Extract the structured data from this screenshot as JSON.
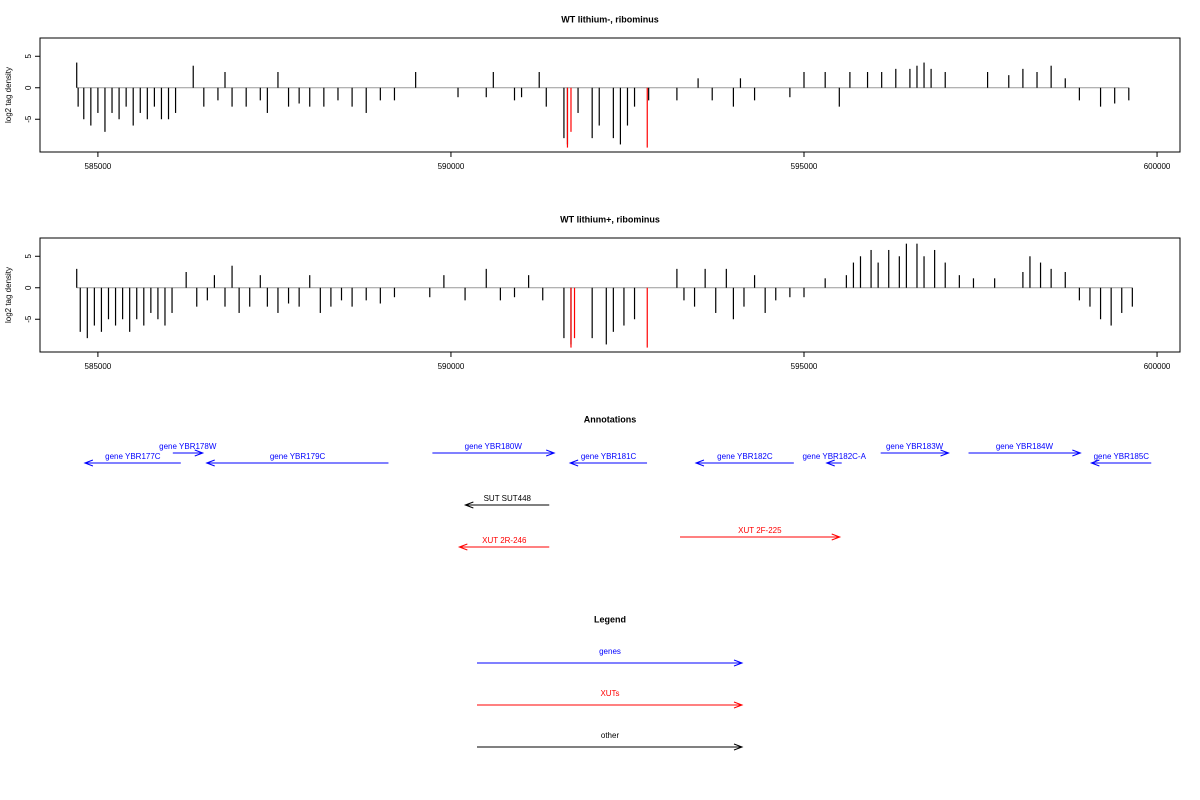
{
  "chart_data": [
    {
      "type": "bar",
      "title": "WT lithium-, ribominus",
      "ylabel": "log2 tag density",
      "xlim": [
        584180,
        600325
      ],
      "xticks": [
        585000,
        590000,
        595000,
        600000
      ],
      "ylim": [
        -10.2,
        7.9
      ],
      "yticks": [
        -5,
        0,
        5
      ],
      "color": "#000000",
      "baseline_color": "#999999",
      "x": [
        584700,
        584720,
        584800,
        584900,
        585000,
        585100,
        585200,
        585300,
        585400,
        585500,
        585600,
        585700,
        585800,
        585900,
        586000,
        586100,
        586350,
        586500,
        586700,
        586800,
        586900,
        587100,
        587300,
        587400,
        587550,
        587700,
        587850,
        588000,
        588200,
        588400,
        588600,
        588800,
        589000,
        589200,
        589500,
        590100,
        590500,
        590600,
        590900,
        591000,
        591250,
        591350,
        591600,
        591650,
        591800,
        592000,
        592100,
        592300,
        592400,
        592500,
        592600,
        592800,
        593200,
        593500,
        593700,
        594000,
        594100,
        594300,
        594800,
        595000,
        595300,
        595500,
        595650,
        595900,
        596100,
        596300,
        596500,
        596600,
        596700,
        596800,
        597000,
        597600,
        597900,
        598100,
        598300,
        598500,
        598700,
        598900,
        599200,
        599400,
        599600
      ],
      "values": [
        4,
        -3,
        -5,
        -6,
        -4,
        -7,
        -4,
        -5,
        -3,
        -6,
        -4,
        -5,
        -3,
        -5,
        -5,
        -4,
        3.5,
        -3,
        -2,
        2.5,
        -3,
        -3,
        -2,
        -4,
        2.5,
        -3,
        -2.5,
        -3,
        -3,
        -2,
        -3,
        -4,
        -2,
        -2,
        2.5,
        -1.5,
        -1.5,
        2.5,
        -2,
        -1.5,
        2.5,
        -3,
        -8,
        -9,
        -4,
        -8,
        -6,
        -8,
        -9,
        -6,
        -3,
        -2,
        -2,
        1.5,
        -2,
        -3,
        1.5,
        -2,
        -1.5,
        2.5,
        2.5,
        -3,
        2.5,
        2.5,
        2.5,
        3,
        3,
        3.5,
        4,
        3,
        2.5,
        2.5,
        2,
        3,
        2.5,
        3.5,
        1.5,
        -2,
        -3,
        -2.5,
        -2
      ],
      "highlight": {
        "color": "#ff0000",
        "x": [
          591650,
          591700,
          592780
        ],
        "values": [
          -9.5,
          -7,
          -9.5
        ]
      }
    },
    {
      "type": "bar",
      "title": "WT lithium+, ribominus",
      "ylabel": "log2 tag density",
      "xlim": [
        584180,
        600325
      ],
      "xticks": [
        585000,
        590000,
        595000,
        600000
      ],
      "ylim": [
        -10.2,
        7.9
      ],
      "yticks": [
        -5,
        0,
        5
      ],
      "color": "#000000",
      "baseline_color": "#999999",
      "x": [
        584700,
        584750,
        584850,
        584950,
        585050,
        585150,
        585250,
        585350,
        585450,
        585550,
        585650,
        585750,
        585850,
        585950,
        586050,
        586250,
        586400,
        586550,
        586650,
        586800,
        586900,
        587000,
        587150,
        587300,
        587400,
        587550,
        587700,
        587850,
        588000,
        588150,
        588300,
        588450,
        588600,
        588800,
        589000,
        589200,
        589700,
        589900,
        590200,
        590500,
        590700,
        590900,
        591100,
        591300,
        591600,
        591700,
        592000,
        592200,
        592300,
        592450,
        592600,
        593200,
        593300,
        593450,
        593600,
        593750,
        593900,
        594000,
        594150,
        594300,
        594450,
        594600,
        594800,
        595000,
        595300,
        595600,
        595700,
        595800,
        595950,
        596050,
        596200,
        596350,
        596450,
        596600,
        596700,
        596850,
        597000,
        597200,
        597400,
        597700,
        598100,
        598200,
        598350,
        598500,
        598700,
        598900,
        599050,
        599200,
        599350,
        599500,
        599650
      ],
      "values": [
        3,
        -7,
        -8,
        -6,
        -7,
        -5,
        -6,
        -5,
        -7,
        -5,
        -6,
        -4,
        -5,
        -6,
        -4,
        2.5,
        -3,
        -2,
        2,
        -3,
        3.5,
        -4,
        -3,
        2,
        -3,
        -4,
        -2.5,
        -3,
        2,
        -4,
        -3,
        -2,
        -3,
        -2,
        -2.5,
        -1.5,
        -1.5,
        2,
        -2,
        3,
        -2,
        -1.5,
        2,
        -2,
        -8,
        -9,
        -8,
        -9,
        -7,
        -6,
        -5,
        3,
        -2,
        -3,
        3,
        -4,
        3,
        -5,
        -3,
        2,
        -4,
        -2,
        -1.5,
        -1.5,
        1.5,
        2,
        4,
        5,
        6,
        4,
        6,
        5,
        7,
        7,
        5,
        6,
        4,
        2,
        1.5,
        1.5,
        2.5,
        5,
        4,
        3,
        2.5,
        -2,
        -3,
        -5,
        -6,
        -4,
        -3
      ],
      "highlight": {
        "color": "#ff0000",
        "x": [
          591700,
          591750,
          592780
        ],
        "values": [
          -9.5,
          -8,
          -9.5
        ]
      }
    }
  ],
  "annotations": {
    "title": "Annotations",
    "genes": [
      {
        "label": "gene YBR177C",
        "start": 584816,
        "end": 586174,
        "strand": "-",
        "color": "#0000ff"
      },
      {
        "label": "gene YBR178W",
        "start": 586061,
        "end": 586485,
        "strand": "+",
        "color": "#0000ff"
      },
      {
        "label": "gene YBR179C",
        "start": 586541,
        "end": 589115,
        "strand": "-",
        "color": "#0000ff"
      },
      {
        "label": "gene YBR180W",
        "start": 589737,
        "end": 591462,
        "strand": "+",
        "color": "#0000ff"
      },
      {
        "label": "gene YBR181C",
        "start": 591688,
        "end": 592777,
        "strand": "-",
        "color": "#0000ff"
      },
      {
        "label": "gene YBR182C",
        "start": 593470,
        "end": 594856,
        "strand": "-",
        "color": "#0000ff"
      },
      {
        "label": "gene YBR182C-A",
        "start": 595322,
        "end": 595534,
        "strand": "-",
        "color": "#0000ff"
      },
      {
        "label": "gene YBR183W",
        "start": 596086,
        "end": 597047,
        "strand": "+",
        "color": "#0000ff"
      },
      {
        "label": "gene YBR184W",
        "start": 597330,
        "end": 598914,
        "strand": "+",
        "color": "#0000ff"
      },
      {
        "label": "gene YBR185C",
        "start": 599070,
        "end": 599918,
        "strand": "-",
        "color": "#0000ff"
      }
    ],
    "suts": [
      {
        "label": "SUT SUT448",
        "start": 590204,
        "end": 591392,
        "strand": "-",
        "color": "#000000"
      }
    ],
    "xuts": [
      {
        "label": "XUT 2R-246",
        "start": 590119,
        "end": 591392,
        "strand": "-",
        "color": "#ff0000"
      },
      {
        "label": "XUT 2F-225",
        "start": 593244,
        "end": 595506,
        "strand": "+",
        "color": "#ff0000"
      }
    ]
  },
  "legend": {
    "title": "Legend",
    "items": [
      {
        "label": "genes",
        "color": "#0000ff"
      },
      {
        "label": "XUTs",
        "color": "#ff0000"
      },
      {
        "label": "other",
        "color": "#000000"
      }
    ]
  }
}
